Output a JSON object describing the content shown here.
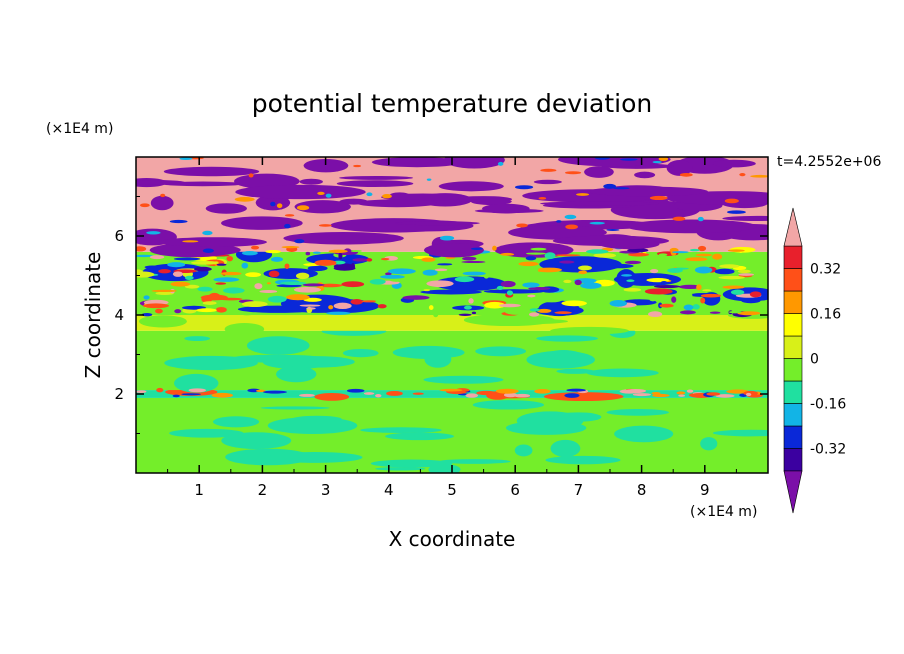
{
  "chart_data": {
    "type": "heatmap",
    "title": "potential temperature deviation",
    "xlabel": "X coordinate",
    "ylabel": "Z coordinate",
    "x_unit": "(×1E4 m)",
    "y_unit": "(×1E4 m)",
    "time_label": "t=4.2552e+06",
    "xlim": [
      0,
      10
    ],
    "ylim": [
      0,
      8
    ],
    "x_ticks": [
      "1",
      "2",
      "3",
      "4",
      "5",
      "6",
      "7",
      "8",
      "9"
    ],
    "x_tick_values": [
      1,
      2,
      3,
      4,
      5,
      6,
      7,
      8,
      9
    ],
    "y_ticks": [
      "2",
      "4",
      "6"
    ],
    "y_tick_values": [
      2,
      4,
      6
    ],
    "colorbar": {
      "labels": [
        "0.32",
        "0.16",
        "0",
        "-0.16",
        "-0.32"
      ],
      "label_values": [
        0.32,
        0.16,
        0,
        -0.16,
        -0.32
      ],
      "levels": [
        -0.4,
        -0.32,
        -0.24,
        -0.16,
        -0.08,
        0,
        0.08,
        0.16,
        0.24,
        0.32,
        0.4
      ],
      "colors": [
        "#7b0fa8",
        "#3b00a0",
        "#0a28d8",
        "#12b4e6",
        "#20e0a0",
        "#74ee2a",
        "#d8f018",
        "#ffff00",
        "#ff9800",
        "#ff5018",
        "#e8202c",
        "#f2a6a6"
      ],
      "under_color": "#7b0fa8",
      "over_color": "#f2a6a6"
    },
    "bands": [
      {
        "z_range": [
          0,
          1.9
        ],
        "dominant": "#74ee2a",
        "secondary": "#20e0a0",
        "value_range": [
          -0.08,
          0.08
        ]
      },
      {
        "z_range": [
          1.9,
          2.1
        ],
        "dominant": "#20e0a0",
        "secondary": "#ff5018",
        "value_range": [
          -0.16,
          0.32
        ]
      },
      {
        "z_range": [
          2.1,
          3.6
        ],
        "dominant": "#74ee2a",
        "secondary": "#20e0a0",
        "value_range": [
          -0.08,
          0.08
        ]
      },
      {
        "z_range": [
          3.6,
          4.0
        ],
        "dominant": "#d8f018",
        "secondary": "#74ee2a",
        "value_range": [
          0,
          0.16
        ]
      },
      {
        "z_range": [
          4.0,
          5.6
        ],
        "dominant": "#74ee2a",
        "secondary": "#0a28d8",
        "value_range": [
          -0.4,
          0.4
        ]
      },
      {
        "z_range": [
          5.6,
          8.0
        ],
        "dominant": "#f2a6a6",
        "secondary": "#7b0fa8",
        "value_range": [
          -0.4,
          0.4
        ]
      }
    ]
  }
}
